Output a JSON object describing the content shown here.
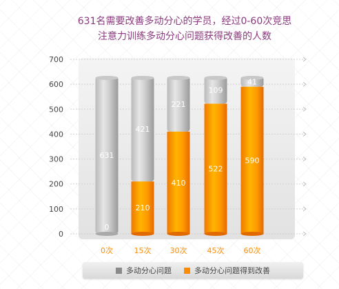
{
  "chart_data": {
    "type": "bar",
    "title_lines": [
      "631名需要改善多动分心的学员，经过0-60次竞思",
      "注意力训练多动分心问题获得改善的人数"
    ],
    "categories": [
      "0次",
      "15次",
      "30次",
      "45次",
      "60次"
    ],
    "series": [
      {
        "name": "多动分心问题",
        "values": [
          631,
          421,
          221,
          109,
          41
        ],
        "color": "#8a8a8a"
      },
      {
        "name": "多动分心问题得到改善",
        "values": [
          0,
          210,
          410,
          522,
          590
        ],
        "color": "#ff8c00"
      }
    ],
    "stacking": "improved at bottom, remaining on top",
    "ylim": [
      0,
      700
    ],
    "yticks": [
      0,
      100,
      200,
      300,
      400,
      500,
      600,
      700
    ],
    "grid": true,
    "legend_position": "bottom"
  }
}
